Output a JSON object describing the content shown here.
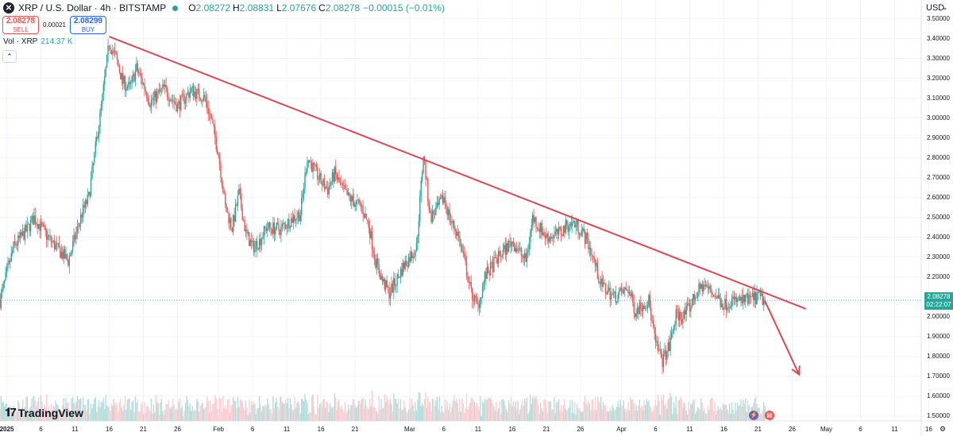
{
  "header": {
    "symbol_icon": "xrp-logo-icon",
    "title": "XRP / U.S. Dollar · 4h · BITSTAMP",
    "ohlc": [
      {
        "label": "O",
        "value": "2.08272"
      },
      {
        "label": "H",
        "value": "2.08831"
      },
      {
        "label": "L",
        "value": "2.07676"
      },
      {
        "label": "C",
        "value": "2.08278"
      }
    ],
    "change": "−0.00015 (−0.01%)"
  },
  "trade": {
    "sell_price": "2.08278",
    "sell_label": "SELL",
    "spread": "0.00021",
    "buy_price": "2.08299",
    "buy_label": "BUY"
  },
  "volume": {
    "label": "Vol · XRP",
    "value": "214.37 K",
    "collapse_icon": "chevron-up-icon"
  },
  "currency": "USD",
  "current_price": {
    "price": "2.08278",
    "countdown": "02:22:07"
  },
  "branding": "TradingView",
  "colors": {
    "up": "#26a69a",
    "down": "#ef5350",
    "trendline": "#e0464f",
    "volume_up": "#b2dfdb",
    "volume_down": "#ffcdd2"
  },
  "chart_data": {
    "type": "candlestick",
    "y_axis_labels": [
      "3.50000",
      "3.40000",
      "3.30000",
      "3.20000",
      "3.10000",
      "3.00000",
      "2.90000",
      "2.80000",
      "2.70000",
      "2.60000",
      "2.50000",
      "2.40000",
      "2.30000",
      "2.20000",
      "2.10000",
      "2.00000",
      "1.90000",
      "1.80000",
      "1.70000",
      "1.60000",
      "1.50000"
    ],
    "ylim": [
      1.45,
      3.54
    ],
    "x_ticks": [
      {
        "label": "2025",
        "bold": true,
        "date": "2025-01-01"
      },
      {
        "label": "6",
        "date": "2025-01-06"
      },
      {
        "label": "11",
        "date": "2025-01-11"
      },
      {
        "label": "16",
        "date": "2025-01-16"
      },
      {
        "label": "21",
        "date": "2025-01-21"
      },
      {
        "label": "26",
        "date": "2025-01-26"
      },
      {
        "label": "Feb",
        "date": "2025-02-01"
      },
      {
        "label": "6",
        "date": "2025-02-06"
      },
      {
        "label": "11",
        "date": "2025-02-11"
      },
      {
        "label": "16",
        "date": "2025-02-16"
      },
      {
        "label": "21",
        "date": "2025-02-21"
      },
      {
        "label": "Mar",
        "date": "2025-03-01"
      },
      {
        "label": "6",
        "date": "2025-03-06"
      },
      {
        "label": "11",
        "date": "2025-03-11"
      },
      {
        "label": "16",
        "date": "2025-03-16"
      },
      {
        "label": "21",
        "date": "2025-03-21"
      },
      {
        "label": "26",
        "date": "2025-03-26"
      },
      {
        "label": "Apr",
        "date": "2025-04-01"
      },
      {
        "label": "6",
        "date": "2025-04-06"
      },
      {
        "label": "11",
        "date": "2025-04-11"
      },
      {
        "label": "16",
        "date": "2025-04-16"
      },
      {
        "label": "21",
        "date": "2025-04-21"
      },
      {
        "label": "26",
        "date": "2025-04-26"
      },
      {
        "label": "May",
        "date": "2025-05-01"
      },
      {
        "label": "6",
        "date": "2025-05-06"
      },
      {
        "label": "11",
        "date": "2025-05-11"
      },
      {
        "label": "16",
        "date": "2025-05-16"
      }
    ],
    "price_path": [
      [
        "2024-12-31",
        2.08
      ],
      [
        "2025-01-02",
        2.35
      ],
      [
        "2025-01-04",
        2.44
      ],
      [
        "2025-01-05",
        2.5
      ],
      [
        "2025-01-07",
        2.4
      ],
      [
        "2025-01-09",
        2.32
      ],
      [
        "2025-01-10",
        2.28
      ],
      [
        "2025-01-11",
        2.4
      ],
      [
        "2025-01-12",
        2.52
      ],
      [
        "2025-01-13",
        2.6
      ],
      [
        "2025-01-14",
        2.85
      ],
      [
        "2025-01-15",
        3.1
      ],
      [
        "2025-01-16",
        3.38
      ],
      [
        "2025-01-17",
        3.3
      ],
      [
        "2025-01-18",
        3.18
      ],
      [
        "2025-01-19",
        3.15
      ],
      [
        "2025-01-20",
        3.25
      ],
      [
        "2025-01-21",
        3.17
      ],
      [
        "2025-01-22",
        3.08
      ],
      [
        "2025-01-24",
        3.15
      ],
      [
        "2025-01-26",
        3.06
      ],
      [
        "2025-01-28",
        3.14
      ],
      [
        "2025-01-30",
        3.1
      ],
      [
        "2025-01-31",
        2.98
      ],
      [
        "2025-02-01",
        2.82
      ],
      [
        "2025-02-02",
        2.55
      ],
      [
        "2025-02-03",
        2.45
      ],
      [
        "2025-02-04",
        2.62
      ],
      [
        "2025-02-05",
        2.42
      ],
      [
        "2025-02-06",
        2.35
      ],
      [
        "2025-02-07",
        2.38
      ],
      [
        "2025-02-08",
        2.45
      ],
      [
        "2025-02-10",
        2.44
      ],
      [
        "2025-02-12",
        2.5
      ],
      [
        "2025-02-13",
        2.52
      ],
      [
        "2025-02-14",
        2.8
      ],
      [
        "2025-02-15",
        2.74
      ],
      [
        "2025-02-16",
        2.68
      ],
      [
        "2025-02-17",
        2.64
      ],
      [
        "2025-02-18",
        2.72
      ],
      [
        "2025-02-19",
        2.65
      ],
      [
        "2025-02-20",
        2.6
      ],
      [
        "2025-02-22",
        2.55
      ],
      [
        "2025-02-23",
        2.46
      ],
      [
        "2025-02-24",
        2.28
      ],
      [
        "2025-02-25",
        2.18
      ],
      [
        "2025-02-26",
        2.12
      ],
      [
        "2025-02-27",
        2.18
      ],
      [
        "2025-02-28",
        2.25
      ],
      [
        "2025-03-02",
        2.35
      ],
      [
        "2025-03-03",
        2.82
      ],
      [
        "2025-03-04",
        2.5
      ],
      [
        "2025-03-05",
        2.54
      ],
      [
        "2025-03-06",
        2.6
      ],
      [
        "2025-03-07",
        2.48
      ],
      [
        "2025-03-08",
        2.42
      ],
      [
        "2025-03-09",
        2.28
      ],
      [
        "2025-03-10",
        2.12
      ],
      [
        "2025-03-11",
        2.05
      ],
      [
        "2025-03-12",
        2.2
      ],
      [
        "2025-03-13",
        2.25
      ],
      [
        "2025-03-14",
        2.3
      ],
      [
        "2025-03-16",
        2.38
      ],
      [
        "2025-03-17",
        2.33
      ],
      [
        "2025-03-18",
        2.28
      ],
      [
        "2025-03-19",
        2.5
      ],
      [
        "2025-03-20",
        2.45
      ],
      [
        "2025-03-21",
        2.4
      ],
      [
        "2025-03-23",
        2.42
      ],
      [
        "2025-03-24",
        2.46
      ],
      [
        "2025-03-25",
        2.47
      ],
      [
        "2025-03-26",
        2.44
      ],
      [
        "2025-03-27",
        2.38
      ],
      [
        "2025-03-28",
        2.28
      ],
      [
        "2025-03-29",
        2.16
      ],
      [
        "2025-03-31",
        2.1
      ],
      [
        "2025-04-01",
        2.12
      ],
      [
        "2025-04-02",
        2.14
      ],
      [
        "2025-04-03",
        2.03
      ],
      [
        "2025-04-04",
        2.06
      ],
      [
        "2025-04-05",
        2.08
      ],
      [
        "2025-04-06",
        1.86
      ],
      [
        "2025-04-07",
        1.78
      ],
      [
        "2025-04-08",
        1.85
      ],
      [
        "2025-04-09",
        2.01
      ],
      [
        "2025-04-10",
        2.0
      ],
      [
        "2025-04-11",
        2.05
      ],
      [
        "2025-04-12",
        2.12
      ],
      [
        "2025-04-13",
        2.16
      ],
      [
        "2025-04-14",
        2.13
      ],
      [
        "2025-04-15",
        2.1
      ],
      [
        "2025-04-16",
        2.06
      ],
      [
        "2025-04-17",
        2.08
      ],
      [
        "2025-04-18",
        2.08
      ],
      [
        "2025-04-19",
        2.08
      ],
      [
        "2025-04-20",
        2.09
      ],
      [
        "2025-04-21",
        2.1
      ],
      [
        "2025-04-22",
        2.08
      ]
    ],
    "trendline": {
      "from": [
        "2025-01-16",
        3.41
      ],
      "to": [
        "2025-04-28",
        2.04
      ]
    },
    "projection_arrow": {
      "from": [
        "2025-04-22",
        2.08
      ],
      "to": [
        "2025-04-27",
        1.71
      ]
    }
  }
}
